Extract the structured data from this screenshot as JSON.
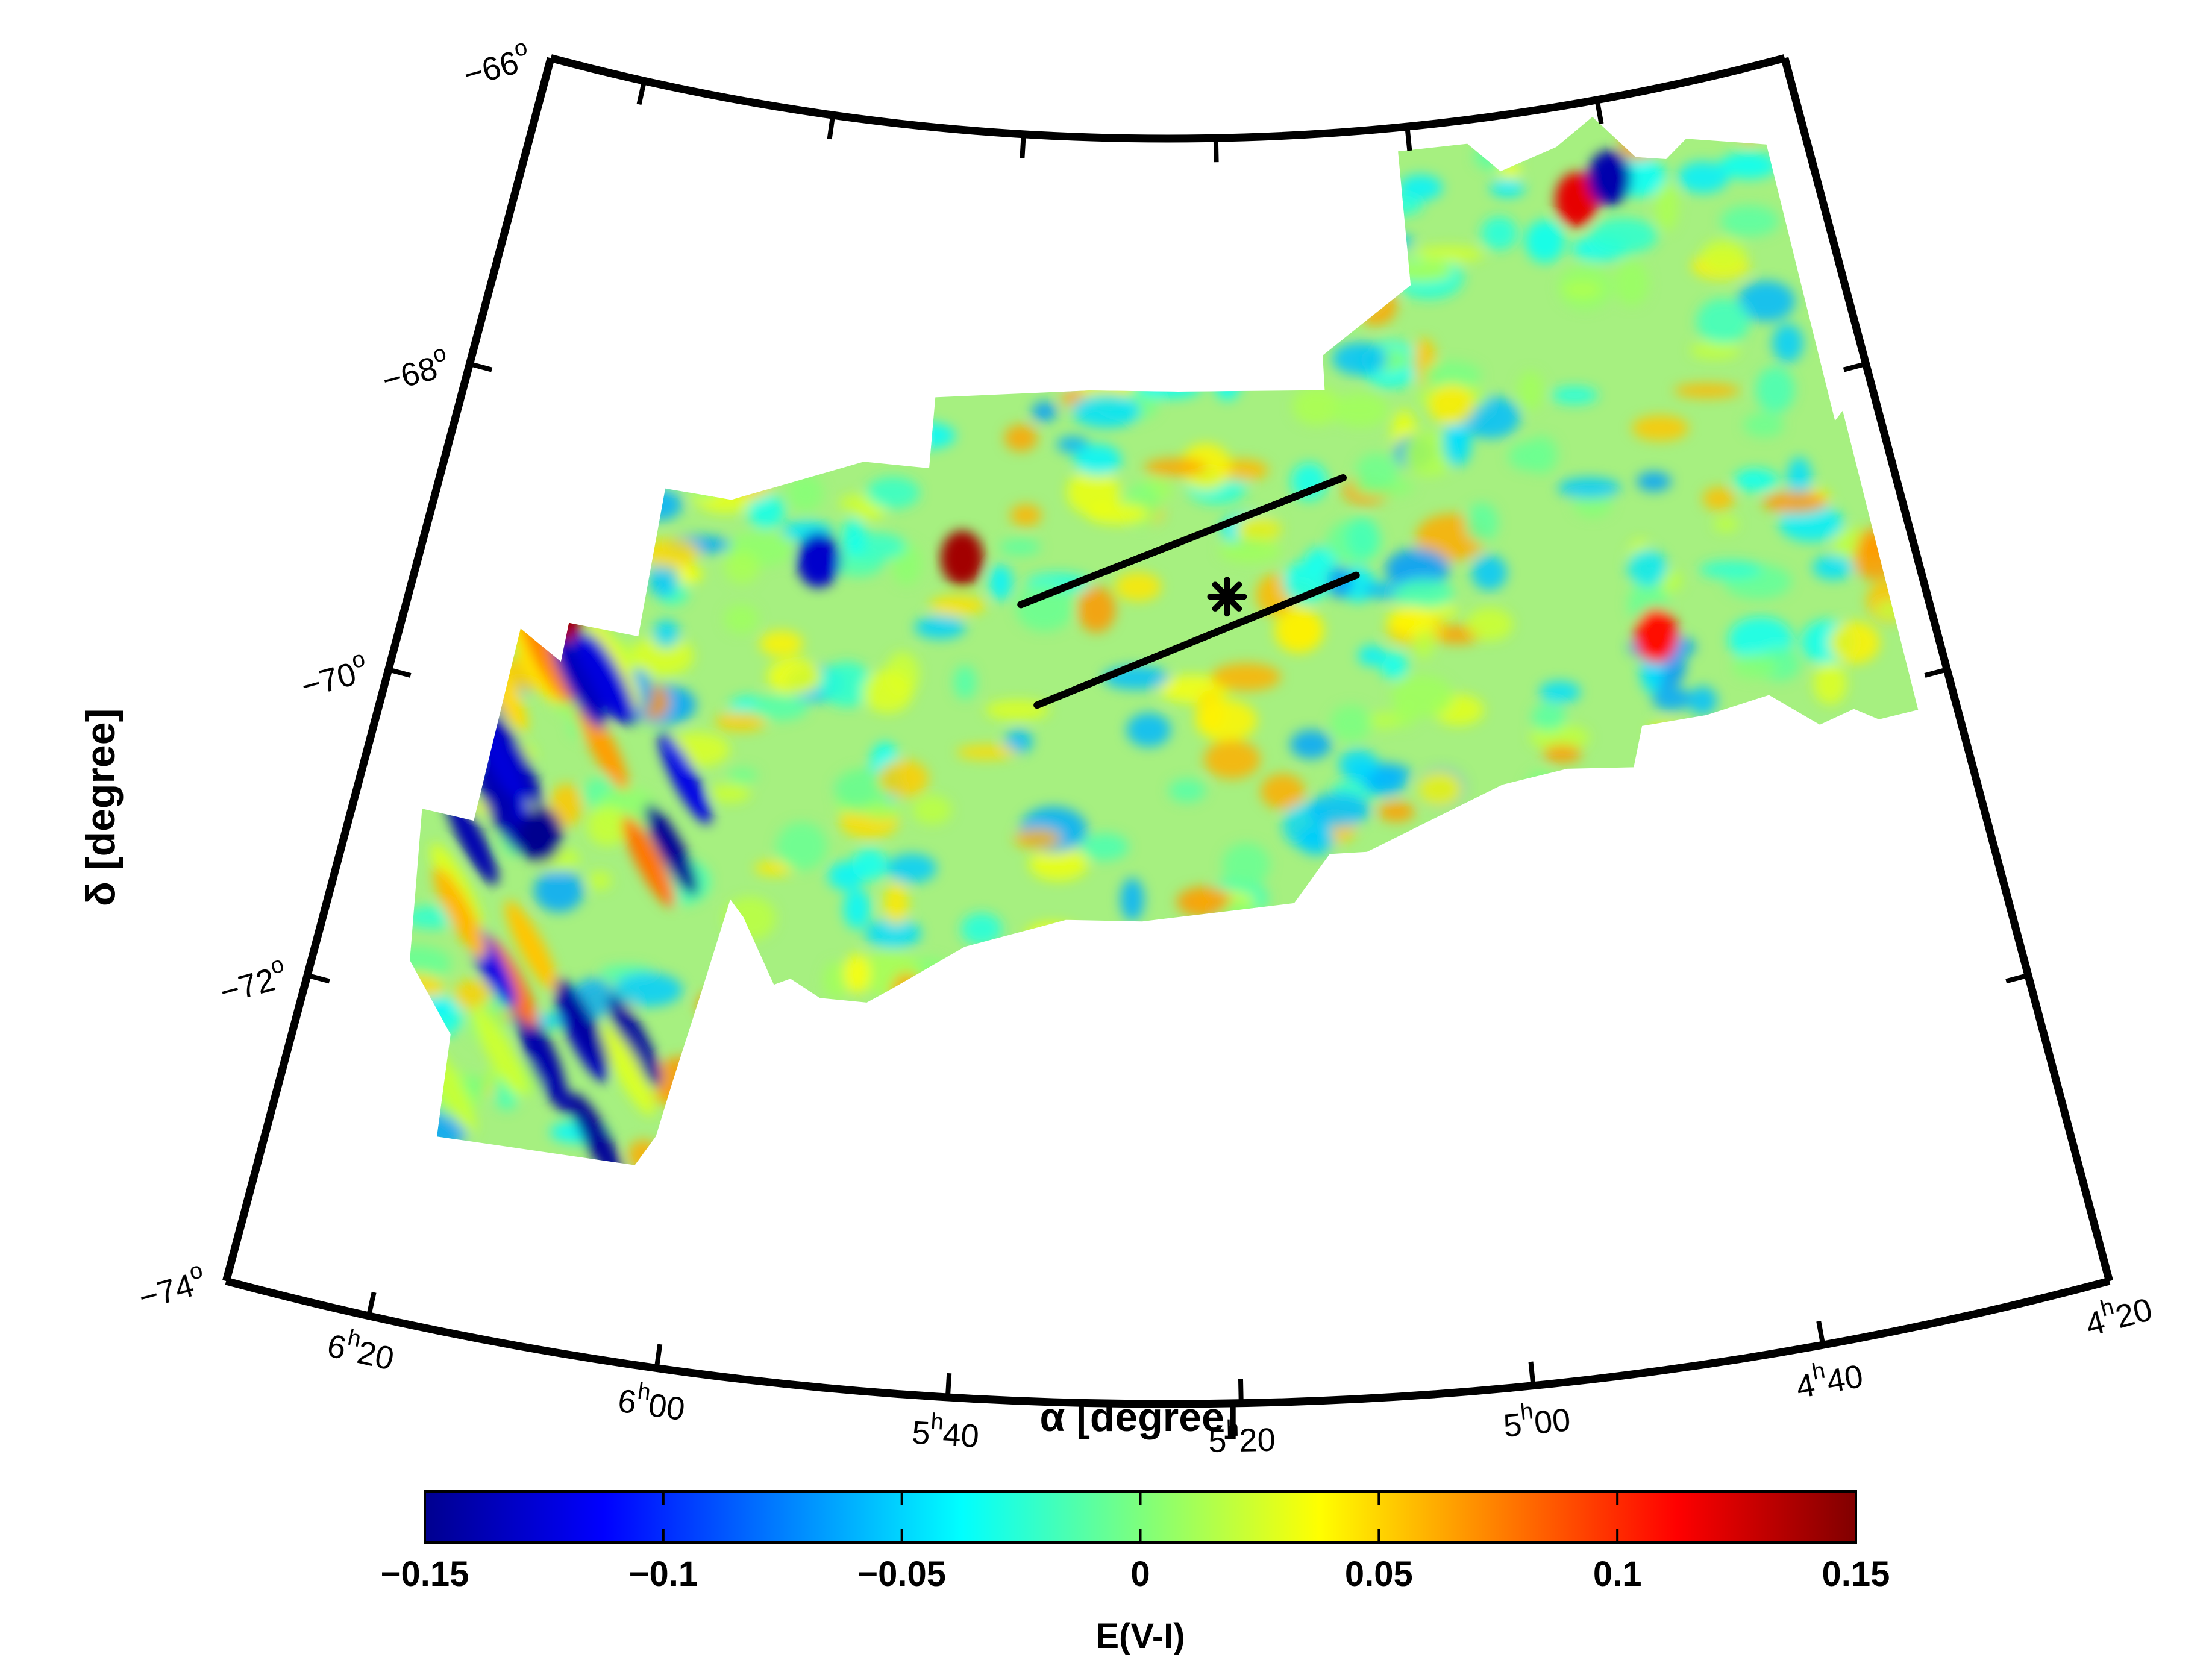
{
  "chart_data": {
    "type": "heatmap",
    "projection": "sky map (right ascension vs declination)",
    "xlabel": "α [degree]",
    "ylabel": "δ [degree]",
    "x_ticks": [
      {
        "h": "6",
        "m": "20",
        "ra_hours": 6.333
      },
      {
        "h": "6",
        "m": "00",
        "ra_hours": 6.0
      },
      {
        "h": "5",
        "m": "40",
        "ra_hours": 5.667
      },
      {
        "h": "5",
        "m": "20",
        "ra_hours": 5.333
      },
      {
        "h": "5",
        "m": "00",
        "ra_hours": 5.0
      },
      {
        "h": "4",
        "m": "40",
        "ra_hours": 4.667
      },
      {
        "h": "4",
        "m": "20",
        "ra_hours": 4.333
      }
    ],
    "y_ticks": [
      {
        "label": "−66",
        "value": -66
      },
      {
        "label": "−68",
        "value": -68
      },
      {
        "label": "−70",
        "value": -70
      },
      {
        "label": "−72",
        "value": -72
      },
      {
        "label": "−74",
        "value": -74
      }
    ],
    "xlim_hours": [
      6.5,
      4.333
    ],
    "ylim_deg": [
      -74,
      -66
    ],
    "colorbar": {
      "label": "E(V-I)",
      "range": [
        -0.15,
        0.15
      ],
      "colormap": "jet",
      "tick_labels": [
        "−0.15",
        "−0.1",
        "−0.05",
        "0",
        "0.05",
        "0.1",
        "0.15"
      ],
      "tick_values": [
        -0.15,
        -0.1,
        -0.05,
        0,
        0.05,
        0.1,
        0.15
      ]
    },
    "features": [
      {
        "kind": "red blob",
        "ra_hours": 5.72,
        "dec": -68.7,
        "value": 0.14
      },
      {
        "kind": "red blob",
        "ra_hours": 6.28,
        "dec": -69.4,
        "value": 0.14
      },
      {
        "kind": "red blob",
        "ra_hours": 4.73,
        "dec": -66.6,
        "value": 0.12
      },
      {
        "kind": "red blob",
        "ra_hours": 4.72,
        "dec": -69.4,
        "value": 0.11
      },
      {
        "kind": "blue blob",
        "ra_hours": 4.67,
        "dec": -66.5,
        "value": -0.14
      },
      {
        "kind": "blue blob",
        "ra_hours": 5.93,
        "dec": -68.8,
        "value": -0.13
      },
      {
        "kind": "blue blob",
        "ra_hours": 6.25,
        "dec": -70.8,
        "value": -0.15
      }
    ],
    "markers": [
      {
        "kind": "asterisk",
        "ra_hours": 5.33,
        "dec": -68.9
      }
    ],
    "annotation_lines": [
      {
        "from": {
          "ra_hours": 5.63,
          "dec": -68.97
        },
        "to": {
          "ra_hours": 5.15,
          "dec": -68.18
        }
      },
      {
        "from": {
          "ra_hours": 5.6,
          "dec": -69.6
        },
        "to": {
          "ra_hours": 5.14,
          "dec": -68.8
        }
      }
    ]
  }
}
